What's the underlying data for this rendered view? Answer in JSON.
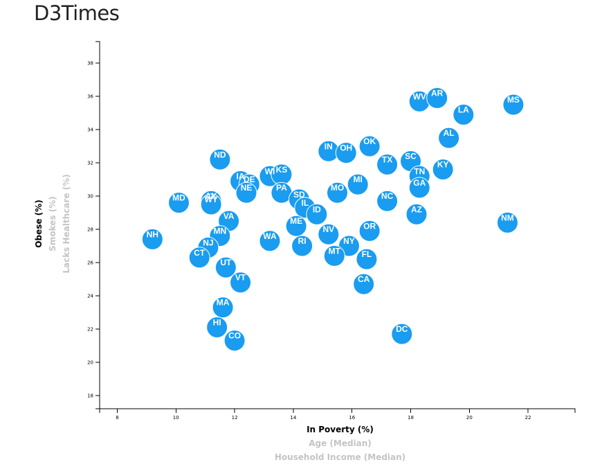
{
  "page": {
    "title": "D3Times"
  },
  "chart_data": {
    "type": "scatter",
    "xlabel": "In Poverty (%)",
    "ylabel": "Obese (%)",
    "xlim": [
      7.4,
      23.6
    ],
    "ylim": [
      17.2,
      39.3
    ],
    "x_ticks": [
      8,
      10,
      12,
      14,
      16,
      18,
      20,
      22
    ],
    "y_ticks": [
      18,
      20,
      22,
      24,
      26,
      28,
      30,
      32,
      34,
      36,
      38
    ],
    "x_axis_options": [
      {
        "label": "In Poverty (%)",
        "active": true
      },
      {
        "label": "Age (Median)",
        "active": false
      },
      {
        "label": "Household Income (Median)",
        "active": false
      }
    ],
    "y_axis_options": [
      {
        "label": "Obese (%)",
        "active": true
      },
      {
        "label": "Smokes (%)",
        "active": false
      },
      {
        "label": "Lacks Healthcare (%)",
        "active": false
      }
    ],
    "colors": {
      "marker": "#1a9cf0",
      "marker_text": "#ffffff"
    },
    "points": [
      {
        "state": "WV",
        "x": 18.3,
        "y": 35.7
      },
      {
        "state": "AR",
        "x": 18.9,
        "y": 35.9
      },
      {
        "state": "MS",
        "x": 21.5,
        "y": 35.5
      },
      {
        "state": "LA",
        "x": 19.8,
        "y": 34.9
      },
      {
        "state": "AL",
        "x": 19.3,
        "y": 33.5
      },
      {
        "state": "OK",
        "x": 16.6,
        "y": 33.0
      },
      {
        "state": "IN",
        "x": 15.2,
        "y": 32.7
      },
      {
        "state": "OH",
        "x": 15.8,
        "y": 32.6
      },
      {
        "state": "ND",
        "x": 11.5,
        "y": 32.2
      },
      {
        "state": "TX",
        "x": 17.2,
        "y": 31.9
      },
      {
        "state": "SC",
        "x": 18.0,
        "y": 32.1
      },
      {
        "state": "KY",
        "x": 19.1,
        "y": 31.6
      },
      {
        "state": "TN",
        "x": 18.3,
        "y": 31.2
      },
      {
        "state": "GA",
        "x": 18.3,
        "y": 30.5
      },
      {
        "state": "WI",
        "x": 13.2,
        "y": 31.2
      },
      {
        "state": "KS",
        "x": 13.6,
        "y": 31.3
      },
      {
        "state": "IA",
        "x": 12.2,
        "y": 30.9
      },
      {
        "state": "DE",
        "x": 12.5,
        "y": 30.7
      },
      {
        "state": "MI",
        "x": 16.2,
        "y": 30.7
      },
      {
        "state": "NE",
        "x": 12.4,
        "y": 30.2
      },
      {
        "state": "PA",
        "x": 13.6,
        "y": 30.2
      },
      {
        "state": "MO",
        "x": 15.5,
        "y": 30.2
      },
      {
        "state": "SD",
        "x": 14.2,
        "y": 29.8
      },
      {
        "state": "IL",
        "x": 14.4,
        "y": 29.3
      },
      {
        "state": "ID",
        "x": 14.8,
        "y": 28.9
      },
      {
        "state": "NC",
        "x": 17.2,
        "y": 29.7
      },
      {
        "state": "AZ",
        "x": 18.2,
        "y": 28.9
      },
      {
        "state": "AK",
        "x": 11.2,
        "y": 29.7
      },
      {
        "state": "WY",
        "x": 11.2,
        "y": 29.5
      },
      {
        "state": "MD",
        "x": 10.1,
        "y": 29.6
      },
      {
        "state": "VA",
        "x": 11.8,
        "y": 28.5
      },
      {
        "state": "ME",
        "x": 14.1,
        "y": 28.2
      },
      {
        "state": "NM",
        "x": 21.3,
        "y": 28.4
      },
      {
        "state": "OR",
        "x": 16.6,
        "y": 27.9
      },
      {
        "state": "NV",
        "x": 15.2,
        "y": 27.7
      },
      {
        "state": "MN",
        "x": 11.5,
        "y": 27.6
      },
      {
        "state": "NH",
        "x": 9.2,
        "y": 27.4
      },
      {
        "state": "WA",
        "x": 13.2,
        "y": 27.3
      },
      {
        "state": "RI",
        "x": 14.3,
        "y": 27.0
      },
      {
        "state": "NY",
        "x": 15.9,
        "y": 27.0
      },
      {
        "state": "NJ",
        "x": 11.1,
        "y": 26.9
      },
      {
        "state": "MT",
        "x": 15.4,
        "y": 26.4
      },
      {
        "state": "CT",
        "x": 10.8,
        "y": 26.3
      },
      {
        "state": "FL",
        "x": 16.5,
        "y": 26.2
      },
      {
        "state": "UT",
        "x": 11.7,
        "y": 25.7
      },
      {
        "state": "VT",
        "x": 12.2,
        "y": 24.8
      },
      {
        "state": "CA",
        "x": 16.4,
        "y": 24.7
      },
      {
        "state": "MA",
        "x": 11.6,
        "y": 23.3
      },
      {
        "state": "HI",
        "x": 11.4,
        "y": 22.1
      },
      {
        "state": "DC",
        "x": 17.7,
        "y": 21.7
      },
      {
        "state": "CO",
        "x": 12.0,
        "y": 21.3
      }
    ]
  }
}
